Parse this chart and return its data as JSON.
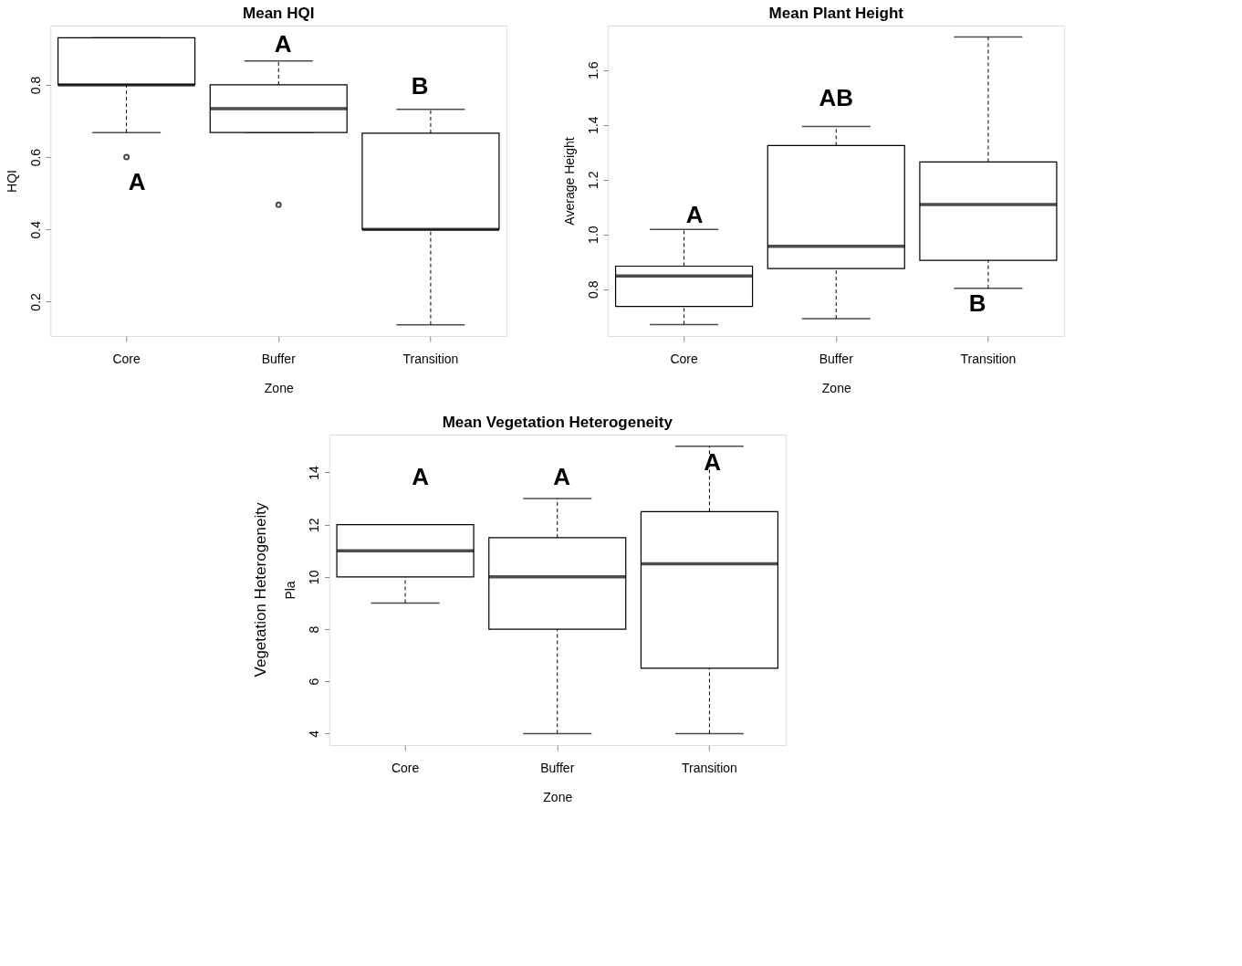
{
  "chart_data": [
    {
      "type": "box",
      "title": "Mean HQI",
      "xlabel": "Zone",
      "ylabel": "HQI",
      "categories": [
        "Core",
        "Buffer",
        "Transition"
      ],
      "boxes": [
        {
          "low": 0.668,
          "q1": 0.8,
          "median": 0.8,
          "q3": 0.93,
          "high": 0.93,
          "outliers": [
            0.6
          ]
        },
        {
          "low": 0.668,
          "q1": 0.668,
          "median": 0.734,
          "q3": 0.8,
          "high": 0.866,
          "outliers": [
            0.468
          ]
        },
        {
          "low": 0.136,
          "q1": 0.4,
          "median": 0.4,
          "q3": 0.666,
          "high": 0.732
        }
      ],
      "ylim": [
        0.105,
        0.964
      ],
      "yticks": [
        0.2,
        0.4,
        0.6,
        0.8
      ],
      "grid": false,
      "annotations": [
        "A",
        "A",
        "B"
      ]
    },
    {
      "type": "box",
      "title": "Mean Plant Height",
      "xlabel": "Zone",
      "ylabel": "Average Height",
      "categories": [
        "Core",
        "Buffer",
        "Transition"
      ],
      "boxes": [
        {
          "low": 0.671,
          "q1": 0.737,
          "median": 0.848,
          "q3": 0.884,
          "high": 1.018
        },
        {
          "low": 0.692,
          "q1": 0.875,
          "median": 0.956,
          "q3": 1.324,
          "high": 1.394
        },
        {
          "low": 0.803,
          "q1": 0.905,
          "median": 1.109,
          "q3": 1.264,
          "high": 1.72
        }
      ],
      "ylim": [
        0.629,
        1.762
      ],
      "yticks": [
        0.8,
        {
          "value": 1.0,
          "label": "1.0"
        },
        1.2,
        1.4,
        1.6
      ],
      "grid": false,
      "annotations": [
        "A",
        "AB",
        "B"
      ]
    },
    {
      "type": "box",
      "title": "Mean Vegetation Heterogeneity",
      "xlabel": "Zone",
      "ylabel": "Pla",
      "categories": [
        "Core",
        "Buffer",
        "Transition"
      ],
      "boxes": [
        {
          "low": 9,
          "q1": 10,
          "median": 11,
          "q3": 12,
          "high": 12
        },
        {
          "low": 4,
          "q1": 8,
          "median": 10,
          "q3": 11.5,
          "high": 13
        },
        {
          "low": 4,
          "q1": 6.5,
          "median": 10.5,
          "q3": 12.5,
          "high": 15
        }
      ],
      "ylim": [
        3.56,
        15.45
      ],
      "yticks": [
        4,
        6,
        8,
        10,
        12,
        14
      ],
      "grid": false,
      "annotations": [
        "Vegetation Heterogeneity",
        "A",
        "A",
        "A"
      ]
    }
  ]
}
